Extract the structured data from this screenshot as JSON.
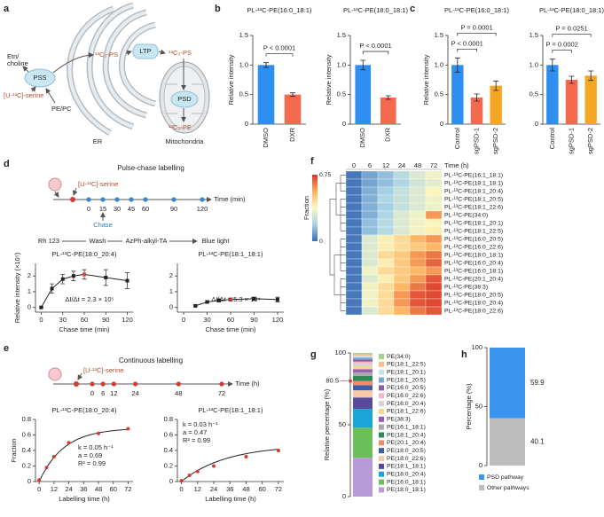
{
  "panel_labels": [
    "a",
    "b",
    "c",
    "d",
    "e",
    "f",
    "g",
    "h"
  ],
  "schematic_a": {
    "er": "ER",
    "mito": "Mitochondria",
    "ltp": "LTP",
    "pss": "PSS",
    "psd": "PSD",
    "etn": [
      "Etn/",
      "choline"
    ],
    "pepc": "PE/PC",
    "serine": "[U-¹³C]-serine",
    "ps_er": "¹³C₃-PS",
    "ps_mito": "¹³C₃-PS",
    "pe": "¹³C₂-PE"
  },
  "schematic_d": {
    "title": "Pulse-chase labelling",
    "serine": "[U-¹³C]-serine",
    "axis_label": "Time (min)",
    "ticks": [
      0,
      15,
      30,
      45,
      60,
      90,
      120
    ],
    "chase": "Chase",
    "steps": [
      "Rh 123",
      "Wash",
      "AzPh-alkyl-TA",
      "Blue light"
    ]
  },
  "schematic_e": {
    "title": "Continuous labelling",
    "serine": "[U-¹³C]-serine",
    "axis_label": "Time (h)",
    "ticks": [
      0,
      6,
      12,
      24,
      48,
      72
    ]
  },
  "chart_data": [
    {
      "type": "bar",
      "title": "PL-¹³C-PE(16:0_18:1)",
      "ylabel": "Relative intensity",
      "categories": [
        "DMSO",
        "DXR"
      ],
      "values": [
        1.0,
        0.5
      ],
      "errors": [
        0.04,
        0.03
      ],
      "colors": [
        "#2f8ff0",
        "#f46a4e"
      ],
      "ylim": [
        0,
        1.5
      ],
      "yticks": [
        0,
        0.5,
        {
          "value": 1,
          "label": "1.0"
        },
        1.5
      ],
      "annotations": [
        "P < 0.0001"
      ]
    },
    {
      "type": "bar",
      "title": "PL-¹³C-PE(18:0_18:1)",
      "ylabel": "Relative intensity",
      "categories": [
        "DMSO",
        "DXR"
      ],
      "values": [
        1.0,
        0.45
      ],
      "errors": [
        0.08,
        0.03
      ],
      "colors": [
        "#2f8ff0",
        "#f46a4e"
      ],
      "ylim": [
        0,
        1.5
      ],
      "yticks": [
        0,
        0.5,
        {
          "value": 1,
          "label": "1.0"
        },
        1.5
      ],
      "annotations": [
        "P < 0.0001"
      ]
    },
    {
      "type": "bar",
      "title": "PL-¹³C-PE(16:0_18:1)",
      "ylabel": "Relative intensity",
      "categories": [
        "Control",
        "sgPSD-1",
        "sgPSD-2"
      ],
      "values": [
        1.0,
        0.45,
        0.65
      ],
      "errors": [
        0.12,
        0.06,
        0.08
      ],
      "colors": [
        "#2f8ff0",
        "#f46a4e",
        "#f5a623"
      ],
      "ylim": [
        0,
        1.5
      ],
      "yticks": [
        0,
        0.5,
        {
          "value": 1,
          "label": "1.0"
        },
        1.5
      ],
      "annotations": [
        "P = 0.0001",
        "P < 0.0001"
      ]
    },
    {
      "type": "bar",
      "title": "PL-¹³C-PE(18:0_18:1)",
      "categories": [
        "Control",
        "sgPSD-1",
        "sgPSD-2"
      ],
      "values": [
        1.0,
        0.75,
        0.82
      ],
      "errors": [
        0.1,
        0.06,
        0.08
      ],
      "colors": [
        "#2f8ff0",
        "#f46a4e",
        "#f5a623"
      ],
      "ylim": [
        0,
        1.5
      ],
      "yticks": [
        0,
        0.5,
        {
          "value": 1,
          "label": "1.0"
        },
        1.5
      ],
      "annotations": [
        "P = 0.0251",
        "P = 0.0002"
      ]
    },
    {
      "type": "line",
      "title": "PL-¹³C-PE(18:0_20:4)",
      "ylabel": "Relative intensity (×10⁵)",
      "xlabel": "Chase time (min)",
      "x": [
        0,
        15,
        30,
        45,
        60,
        90,
        120
      ],
      "values": [
        0.0,
        1.2,
        1.8,
        2.0,
        2.1,
        1.9,
        1.7
      ],
      "errors": [
        0.05,
        0.3,
        0.3,
        0.3,
        0.3,
        0.5,
        0.5
      ],
      "color": "#222222",
      "point_colors": [
        "#222222",
        "#222222",
        "#222222",
        "#222222",
        "#e0403a",
        "#222222",
        "#222222"
      ],
      "xlim": [
        -8,
        128
      ],
      "xticks": [
        0,
        30,
        60,
        90,
        120
      ],
      "ylim": [
        -0.3,
        2.8
      ],
      "yticks": [
        0,
        1,
        2
      ],
      "annotation": "ΔI/Δt = 2.3 × 10⁵"
    },
    {
      "type": "line",
      "title": "PL-¹³C-PE(18:1_18:1)",
      "xlabel": "Chase time (min)",
      "x": [
        15,
        30,
        45,
        60,
        90,
        120
      ],
      "values": [
        0.1,
        0.35,
        0.45,
        0.5,
        0.55,
        0.5
      ],
      "errors": [
        0.05,
        0.08,
        0.1,
        0.1,
        0.1,
        0.15
      ],
      "color": "#222222",
      "point_colors": [
        "#222222",
        "#222222",
        "#222222",
        "#e0403a",
        "#222222",
        "#222222"
      ],
      "xlim": [
        -8,
        128
      ],
      "xticks": [
        0,
        30,
        60,
        90,
        120
      ],
      "ylim": [
        -0.3,
        2.8
      ],
      "yticks": [
        0,
        1,
        2
      ],
      "annotation": "ΔI/Δt = 5.3 × 10⁴"
    },
    {
      "type": "scatter",
      "title": "PL-¹³C-PE(18:0_20:4)",
      "ylabel": "Fraction",
      "xlabel": "Labelling time (h)",
      "x": [
        0,
        6,
        12,
        24,
        48,
        72
      ],
      "values": [
        0.02,
        0.18,
        0.32,
        0.5,
        0.62,
        0.68
      ],
      "color": "#d63a2f",
      "fit": {
        "k": 0.05,
        "a": 0.69
      },
      "fit_color": "#222222",
      "annotations": [
        "k = 0.05 h⁻¹",
        "a = 0.69",
        "R² = 0.99"
      ],
      "xlim": [
        -3,
        76
      ],
      "xticks": [
        0,
        12,
        24,
        36,
        48,
        60,
        72
      ],
      "ylim": [
        0,
        0.8
      ],
      "yticks": [
        0,
        0.2,
        0.4,
        0.6,
        0.8
      ]
    },
    {
      "type": "scatter",
      "title": "PL-¹³C-PE(18:1_18:1)",
      "xlabel": "Labelling time (h)",
      "x": [
        0,
        6,
        12,
        24,
        48,
        72
      ],
      "values": [
        0.01,
        0.08,
        0.13,
        0.2,
        0.32,
        0.4
      ],
      "color": "#d63a2f",
      "fit": {
        "k": 0.03,
        "a": 0.47
      },
      "fit_color": "#222222",
      "annotations": [
        "k = 0.03 h⁻¹",
        "a = 0.47",
        "R² = 0.99"
      ],
      "xlim": [
        -3,
        76
      ],
      "xticks": [
        0,
        12,
        24,
        36,
        48,
        60,
        72
      ],
      "ylim": [
        0,
        0.8
      ],
      "yticks": [
        0,
        0.2,
        0.4,
        0.6,
        0.8
      ]
    },
    {
      "type": "heatmap",
      "columns": [
        0,
        6,
        12,
        24,
        48,
        72
      ],
      "column_label": "Time (h)",
      "colorbar_label": "Fraction",
      "clim": [
        0,
        0.75
      ],
      "cticks": [
        0,
        0.75
      ],
      "colormap": [
        "#3a6db5",
        "#a8d4e8",
        "#fbf7c0",
        "#fdb25f",
        "#d9352a"
      ],
      "rows": [
        "PL-¹³C-PE(16:1_18:1)",
        "PL-¹³C-PE(18:1_18:1)",
        "PL-¹³C-PE(18:1_20:4)",
        "PL-¹³C-PE(18:1_20:5)",
        "PL-¹³C-PE(18:1_22:6)",
        "PL-¹³C-PE(34:0)",
        "PL-¹³C-PE(18:1_20:1)",
        "PL-¹³C-PE(18:1_22:5)",
        "PL-¹³C-PE(16:0_20:5)",
        "PL-¹³C-PE(16:0_22:6)",
        "PL-¹³C-PE(18:0_18:1)",
        "PL-¹³C-PE(16:0_20:4)",
        "PL-¹³C-PE(16:0_18:1)",
        "PL-¹³C-PE(20:1_20:4)",
        "PL-¹³C-PE(38:3)",
        "PL-¹³C-PE(18:0_20:5)",
        "PL-¹³C-PE(18:0_20:4)",
        "PL-¹³C-PE(18:0_22:6)"
      ],
      "values": [
        [
          0.02,
          0.1,
          0.15,
          0.22,
          0.3,
          0.35
        ],
        [
          0.02,
          0.1,
          0.15,
          0.2,
          0.28,
          0.32
        ],
        [
          0.02,
          0.12,
          0.18,
          0.25,
          0.3,
          0.38
        ],
        [
          0.02,
          0.12,
          0.2,
          0.25,
          0.3,
          0.35
        ],
        [
          0.02,
          0.12,
          0.18,
          0.25,
          0.3,
          0.35
        ],
        [
          0.02,
          0.12,
          0.2,
          0.3,
          0.35,
          0.6
        ],
        [
          0.02,
          0.15,
          0.22,
          0.3,
          0.35,
          0.38
        ],
        [
          0.02,
          0.15,
          0.22,
          0.3,
          0.35,
          0.4
        ],
        [
          0.02,
          0.3,
          0.4,
          0.45,
          0.55,
          0.6
        ],
        [
          0.02,
          0.3,
          0.4,
          0.45,
          0.5,
          0.55
        ],
        [
          0.02,
          0.3,
          0.45,
          0.5,
          0.6,
          0.65
        ],
        [
          0.02,
          0.3,
          0.4,
          0.5,
          0.6,
          0.68
        ],
        [
          0.02,
          0.35,
          0.45,
          0.5,
          0.55,
          0.6
        ],
        [
          0.02,
          0.3,
          0.4,
          0.5,
          0.6,
          0.7
        ],
        [
          0.02,
          0.35,
          0.45,
          0.55,
          0.65,
          0.72
        ],
        [
          0.02,
          0.35,
          0.45,
          0.6,
          0.7,
          0.72
        ],
        [
          0.02,
          0.35,
          0.45,
          0.6,
          0.7,
          0.72
        ],
        [
          0.02,
          0.3,
          0.45,
          0.55,
          0.65,
          0.7
        ]
      ]
    },
    {
      "type": "stacked_bar",
      "ylabel": "Relative percentage (%)",
      "ylim": [
        0,
        100
      ],
      "yticks": [
        0,
        50,
        100
      ],
      "marker": 80.5,
      "marker_color": "#e0403a",
      "series": [
        {
          "name": "PE(34:0)",
          "color": "#9fd38f",
          "values": [
            1.0
          ]
        },
        {
          "name": "PE(18:1_22:5)",
          "color": "#f5c28f",
          "values": [
            1.0
          ]
        },
        {
          "name": "PE(18:1_20:1)",
          "color": "#c6e2f0",
          "values": [
            1.2
          ]
        },
        {
          "name": "PE(18:1_20:5)",
          "color": "#7aa6d6",
          "values": [
            1.3
          ]
        },
        {
          "name": "PE(16:0_20:5)",
          "color": "#8b5ca8",
          "values": [
            1.5
          ]
        },
        {
          "name": "PE(16:0_22:6)",
          "color": "#f4b6c8",
          "values": [
            1.5
          ]
        },
        {
          "name": "PE(16:0_20:4)",
          "color": "#d3d3d3",
          "values": [
            1.8
          ]
        },
        {
          "name": "PE(18:1_22:6)",
          "color": "#f2d98a",
          "values": [
            2.0
          ]
        },
        {
          "name": "PE(38:3)",
          "color": "#9b59b6",
          "values": [
            2.2
          ]
        },
        {
          "name": "PE(16:1_18:1)",
          "color": "#a9a9a9",
          "values": [
            2.5
          ]
        },
        {
          "name": "PE(18:1_20:4)",
          "color": "#2e8b57",
          "values": [
            3.5
          ]
        },
        {
          "name": "PE(20:1_20:4)",
          "color": "#f08a6c",
          "values": [
            3.0
          ]
        },
        {
          "name": "PE(18:0_20:5)",
          "color": "#3a5fa8",
          "values": [
            3.5
          ]
        },
        {
          "name": "PE(18:0_22:6)",
          "color": "#f7c9a8",
          "values": [
            5.0
          ]
        },
        {
          "name": "PE(18:1_18:1)",
          "color": "#5a4a9e",
          "values": [
            8.0
          ]
        },
        {
          "name": "PE(18:0_20:4)",
          "color": "#1aa4d8",
          "values": [
            13.0
          ]
        },
        {
          "name": "PE(16:0_18:1)",
          "color": "#6cbf5a",
          "values": [
            21.0
          ]
        },
        {
          "name": "PE(18:0_18:1)",
          "color": "#b79ad8",
          "values": [
            27.0
          ]
        }
      ]
    },
    {
      "type": "stacked_bar",
      "ylabel": "Percentage (%)",
      "ylim": [
        0,
        100
      ],
      "yticks": [
        0,
        50,
        100
      ],
      "show_values": true,
      "series": [
        {
          "name": "PSD pathway",
          "color": "#3a93ec",
          "values": [
            59.9
          ]
        },
        {
          "name": "Other pathways",
          "color": "#bdbdbd",
          "values": [
            40.1
          ]
        }
      ]
    }
  ]
}
